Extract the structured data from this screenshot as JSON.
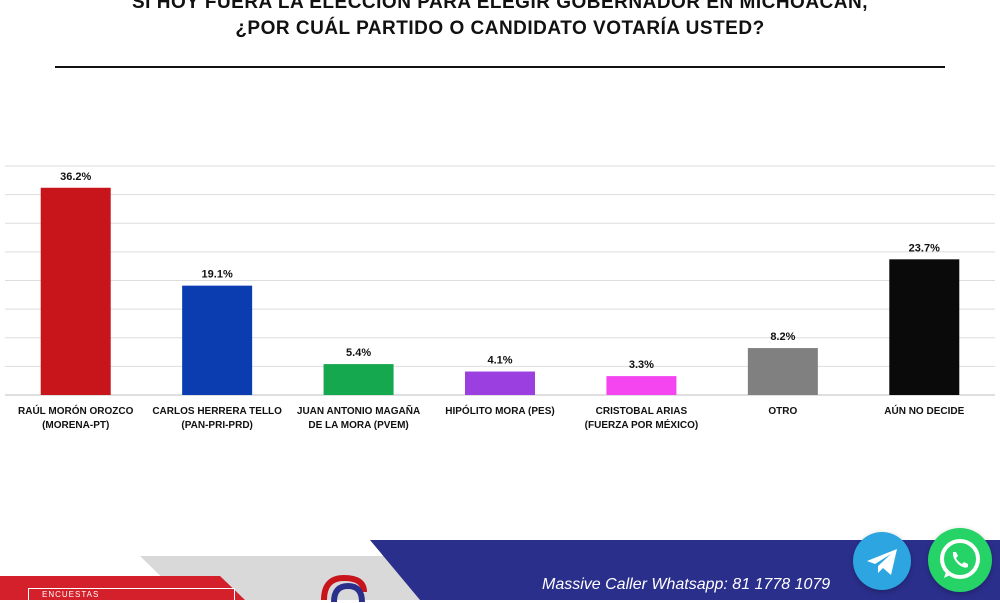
{
  "header": {
    "title_line1": "SI HOY FUERA LA ELECCIÓN PARA ELEGIR GOBERNADOR EN MICHOACÁN,",
    "title_line2": "¿POR CUÁL PARTIDO O CANDIDATO VOTARÍA USTED?"
  },
  "chart_data": {
    "type": "bar",
    "categories": [
      [
        "RAÚL MORÓN OROZCO",
        "(MORENA-PT)"
      ],
      [
        "CARLOS HERRERA TELLO",
        "(PAN-PRI-PRD)"
      ],
      [
        "JUAN ANTONIO MAGAÑA",
        "DE LA MORA (PVEM)"
      ],
      [
        "HIPÓLITO MORA (PES)"
      ],
      [
        "CRISTOBAL ARIAS",
        "(FUERZA POR MÉXICO)"
      ],
      [
        "OTRO"
      ],
      [
        "AÚN NO DECIDE"
      ]
    ],
    "values": [
      36.2,
      19.1,
      5.4,
      4.1,
      3.3,
      8.2,
      23.7
    ],
    "data_labels": [
      "36.2%",
      "19.1%",
      "5.4%",
      "4.1%",
      "3.3%",
      "8.2%",
      "23.7%"
    ],
    "colors": [
      "#c8141b",
      "#0b3cb0",
      "#16a84e",
      "#9b3fe0",
      "#f445f0",
      "#808080",
      "#0a0a0a"
    ],
    "ylim": [
      0,
      40
    ],
    "grid": true,
    "legend": "none"
  },
  "footer": {
    "text": "Massive Caller Whatsapp:  81 1778 1079",
    "logo_text": "ENCUESTAS",
    "colors": {
      "navy": "#2b2f8c",
      "red": "#d3202a"
    }
  },
  "icons": [
    "telegram-icon",
    "whatsapp-icon"
  ]
}
